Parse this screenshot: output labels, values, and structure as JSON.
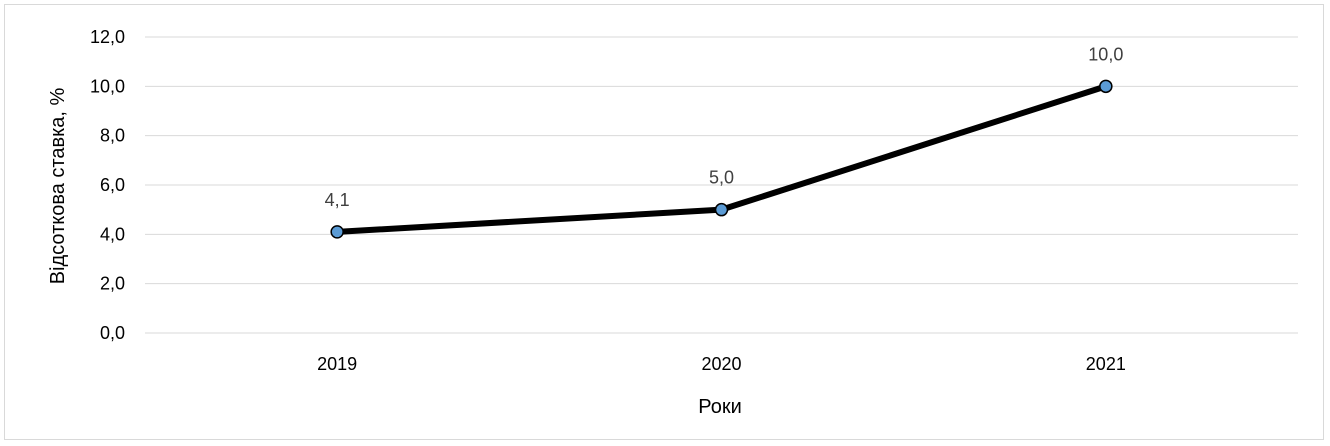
{
  "chart_data": {
    "type": "line",
    "categories": [
      "2019",
      "2020",
      "2021"
    ],
    "series": [
      {
        "values": [
          4.1,
          5.0,
          10.0
        ]
      }
    ],
    "data_labels": [
      "4,1",
      "5,0",
      "10,0"
    ],
    "y_ticks": [
      "0,0",
      "2,0",
      "4,0",
      "6,0",
      "8,0",
      "10,0",
      "12,0"
    ],
    "ylim": [
      0,
      12
    ],
    "ylabel": "Відсоткова ставка, %",
    "xlabel": "Роки",
    "title": "",
    "grid": true,
    "legend": "none",
    "colors": {
      "line": "#000000",
      "marker_fill": "#5b9bd5",
      "marker_edge": "#000000",
      "grid": "#d9d9d9",
      "data_label": "#404040"
    }
  }
}
